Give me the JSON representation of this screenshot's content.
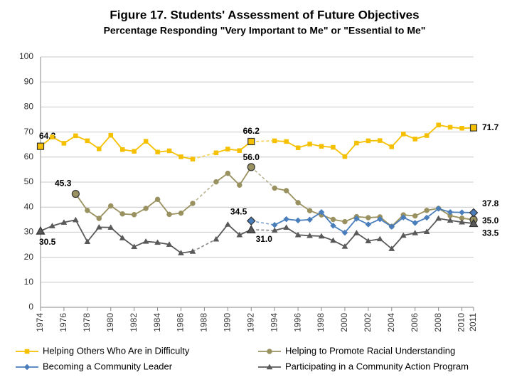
{
  "chart_data": {
    "type": "line",
    "title": "Figure 17.  Students' Assessment of Future Objectives",
    "subtitle": "Percentage Responding \"Very Important to Me\" or \"Essential to Me\"",
    "x": [
      1974,
      1975,
      1976,
      1977,
      1978,
      1979,
      1980,
      1981,
      1982,
      1983,
      1984,
      1985,
      1986,
      1987,
      1988,
      1989,
      1990,
      1991,
      1992,
      1993,
      1994,
      1995,
      1996,
      1997,
      1998,
      1999,
      2000,
      2001,
      2002,
      2003,
      2004,
      2005,
      2006,
      2007,
      2008,
      2009,
      2010,
      2011
    ],
    "xlim": [
      1974,
      2011
    ],
    "xticks": [
      1974,
      1976,
      1978,
      1980,
      1982,
      1984,
      1986,
      1988,
      1990,
      1992,
      1994,
      1996,
      1998,
      2000,
      2002,
      2004,
      2006,
      2008,
      2010,
      2011
    ],
    "ylim": [
      0,
      100
    ],
    "yticks": [
      0,
      10,
      20,
      30,
      40,
      50,
      60,
      70,
      80,
      90,
      100
    ],
    "grid": true,
    "legend": "bottom",
    "series": [
      {
        "name": "Helping Others Who Are in Difficulty",
        "color": "#f5c000",
        "marker": "square",
        "values": [
          64.3,
          68,
          65.5,
          68.5,
          66.5,
          63.3,
          68.7,
          63,
          62.3,
          66.3,
          62,
          62.5,
          60.1,
          59.2,
          null,
          61.7,
          63.2,
          62.6,
          66.2,
          null,
          66.5,
          66.2,
          63.7,
          65.2,
          64.3,
          63.9,
          60.2,
          65.6,
          66.5,
          66.6,
          64.1,
          69.2,
          67.2,
          68.6,
          72.8,
          71.9,
          71.5,
          71.7
        ],
        "value_labels": [
          "64.3",
          null,
          null,
          null,
          null,
          null,
          null,
          null,
          null,
          null,
          null,
          null,
          null,
          null,
          null,
          null,
          null,
          null,
          "66.2",
          null,
          null,
          null,
          null,
          null,
          null,
          null,
          null,
          null,
          null,
          null,
          null,
          null,
          null,
          null,
          null,
          null,
          null,
          "71.7"
        ]
      },
      {
        "name": "Helping to Promote Racial Understanding",
        "color": "#9a9160",
        "marker": "circle",
        "values": [
          null,
          null,
          null,
          45.3,
          38.7,
          35.5,
          40.5,
          37.3,
          37,
          39.5,
          43.1,
          37.1,
          37.6,
          41.5,
          null,
          50.1,
          53.5,
          48.8,
          56.0,
          null,
          47.6,
          46.6,
          41.8,
          38.6,
          36.9,
          35.1,
          34.2,
          36.2,
          35.8,
          36.1,
          32.3,
          36.9,
          36.5,
          38.7,
          39.5,
          36.6,
          35.6,
          35.0
        ],
        "value_labels": [
          null,
          null,
          null,
          "45.3",
          null,
          null,
          null,
          null,
          null,
          null,
          null,
          null,
          null,
          null,
          null,
          null,
          null,
          null,
          "56.0",
          null,
          null,
          null,
          null,
          null,
          null,
          null,
          null,
          null,
          null,
          null,
          null,
          null,
          null,
          null,
          null,
          null,
          null,
          "35.0"
        ]
      },
      {
        "name": "Becoming a Community Leader",
        "color": "#4a7ebb",
        "marker": "diamond",
        "values": [
          null,
          null,
          null,
          null,
          null,
          null,
          null,
          null,
          null,
          null,
          null,
          null,
          null,
          null,
          null,
          null,
          null,
          null,
          34.5,
          null,
          32.9,
          35.2,
          34.7,
          35,
          38,
          32.6,
          29.8,
          35.4,
          33.1,
          35.2,
          32.2,
          35.9,
          33.7,
          35.8,
          39.4,
          38,
          37.9,
          37.8
        ],
        "value_labels": [
          null,
          null,
          null,
          null,
          null,
          null,
          null,
          null,
          null,
          null,
          null,
          null,
          null,
          null,
          null,
          null,
          null,
          null,
          "34.5",
          null,
          null,
          null,
          null,
          null,
          null,
          null,
          null,
          null,
          null,
          null,
          null,
          null,
          null,
          null,
          null,
          null,
          null,
          "37.8"
        ]
      },
      {
        "name": "Participating in a Community Action Program",
        "color": "#595959",
        "marker": "triangle",
        "values": [
          30.5,
          32.5,
          33.9,
          34.9,
          26.2,
          32,
          31.9,
          27.7,
          24.2,
          26.3,
          25.9,
          25.1,
          21.7,
          22.3,
          null,
          27.2,
          33.1,
          28.9,
          31.0,
          null,
          30.7,
          31.9,
          28.9,
          28.6,
          28.4,
          26.7,
          24.3,
          29.7,
          26.5,
          27.3,
          23.4,
          28.7,
          29.7,
          30.2,
          35.5,
          34.7,
          34.0,
          33.5
        ],
        "value_labels": [
          "30.5",
          null,
          null,
          null,
          null,
          null,
          null,
          null,
          null,
          null,
          null,
          null,
          null,
          null,
          null,
          null,
          null,
          null,
          "31.0",
          null,
          null,
          null,
          null,
          null,
          null,
          null,
          null,
          null,
          null,
          null,
          null,
          null,
          null,
          null,
          null,
          null,
          null,
          "33.5"
        ]
      }
    ]
  }
}
